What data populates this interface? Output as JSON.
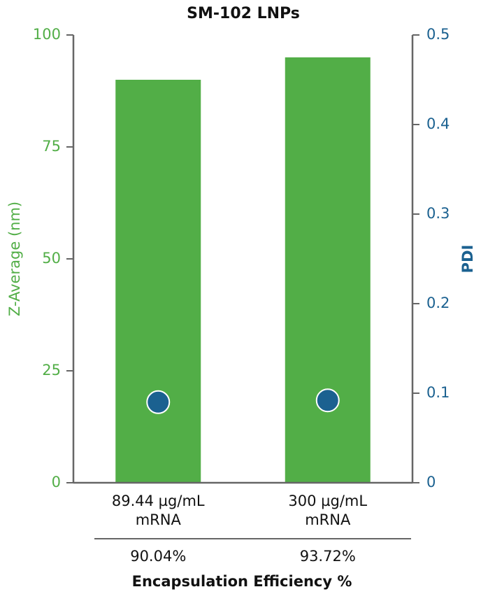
{
  "chart_data": {
    "type": "bar",
    "title": "SM-102 LNPs",
    "categories": [
      [
        "89.44 µg/mL",
        "mRNA"
      ],
      [
        "300 µg/mL",
        "mRNA"
      ]
    ],
    "series": [
      {
        "type": "bar",
        "color": "#52ae47",
        "values": [
          90,
          95
        ]
      },
      {
        "type": "scatter",
        "color": "#1b6190",
        "values": [
          0.09,
          0.092
        ],
        "axis": "y2"
      }
    ],
    "ylabel": "Z-Average (nm)",
    "y2label": "PDI",
    "ylim": [
      0,
      100
    ],
    "yticks": [
      0,
      25,
      50,
      75,
      100
    ],
    "y2lim": [
      0,
      0.5
    ],
    "y2ticks": [
      0,
      0.1,
      0.2,
      0.3,
      0.4,
      0.5
    ],
    "encapsulation": {
      "title": "Encapsulation Efficiency %",
      "labels": [
        "90.04%",
        "93.72%"
      ]
    }
  }
}
